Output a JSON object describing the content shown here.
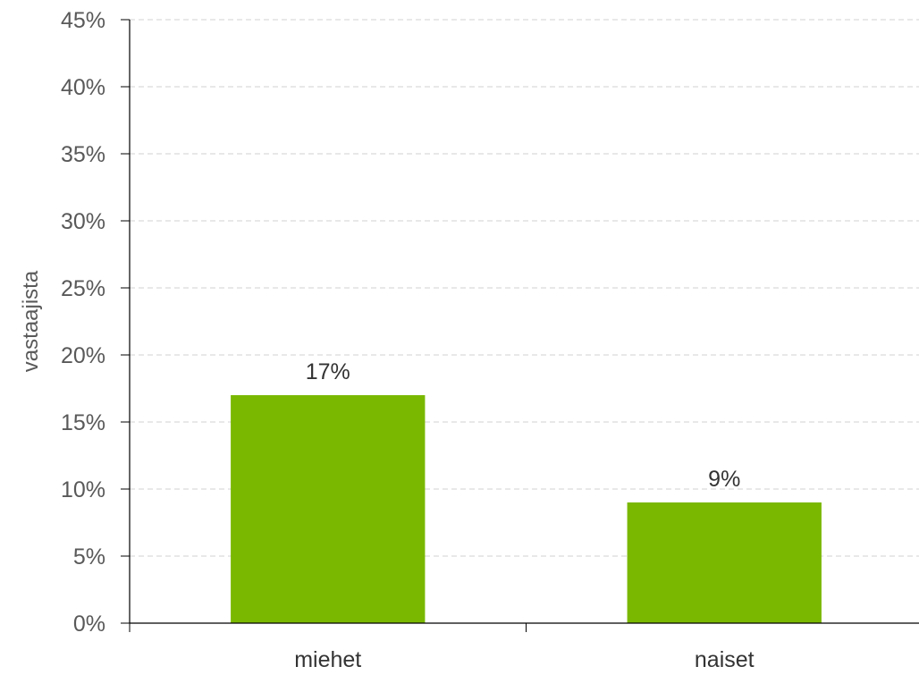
{
  "chart_data": {
    "type": "bar",
    "categories": [
      "miehet",
      "naiset"
    ],
    "values": [
      17,
      9
    ],
    "data_labels": [
      "17%",
      "9%"
    ],
    "ylabel": "vastaajista",
    "ylim": [
      0,
      45
    ],
    "y_tick_values": [
      0,
      5,
      10,
      15,
      20,
      25,
      30,
      35,
      40,
      45
    ],
    "y_tick_labels": [
      "0%",
      "5%",
      "10%",
      "15%",
      "20%",
      "25%",
      "30%",
      "35%",
      "40%",
      "45%"
    ],
    "grid": true,
    "grid_style": "dashed-horizontal",
    "legend": "none",
    "colors": {
      "bar": "#7ab800",
      "axis": "#000000",
      "grid": "#d9d9d9",
      "tick_text": "#595959",
      "label_text": "#333333"
    }
  }
}
